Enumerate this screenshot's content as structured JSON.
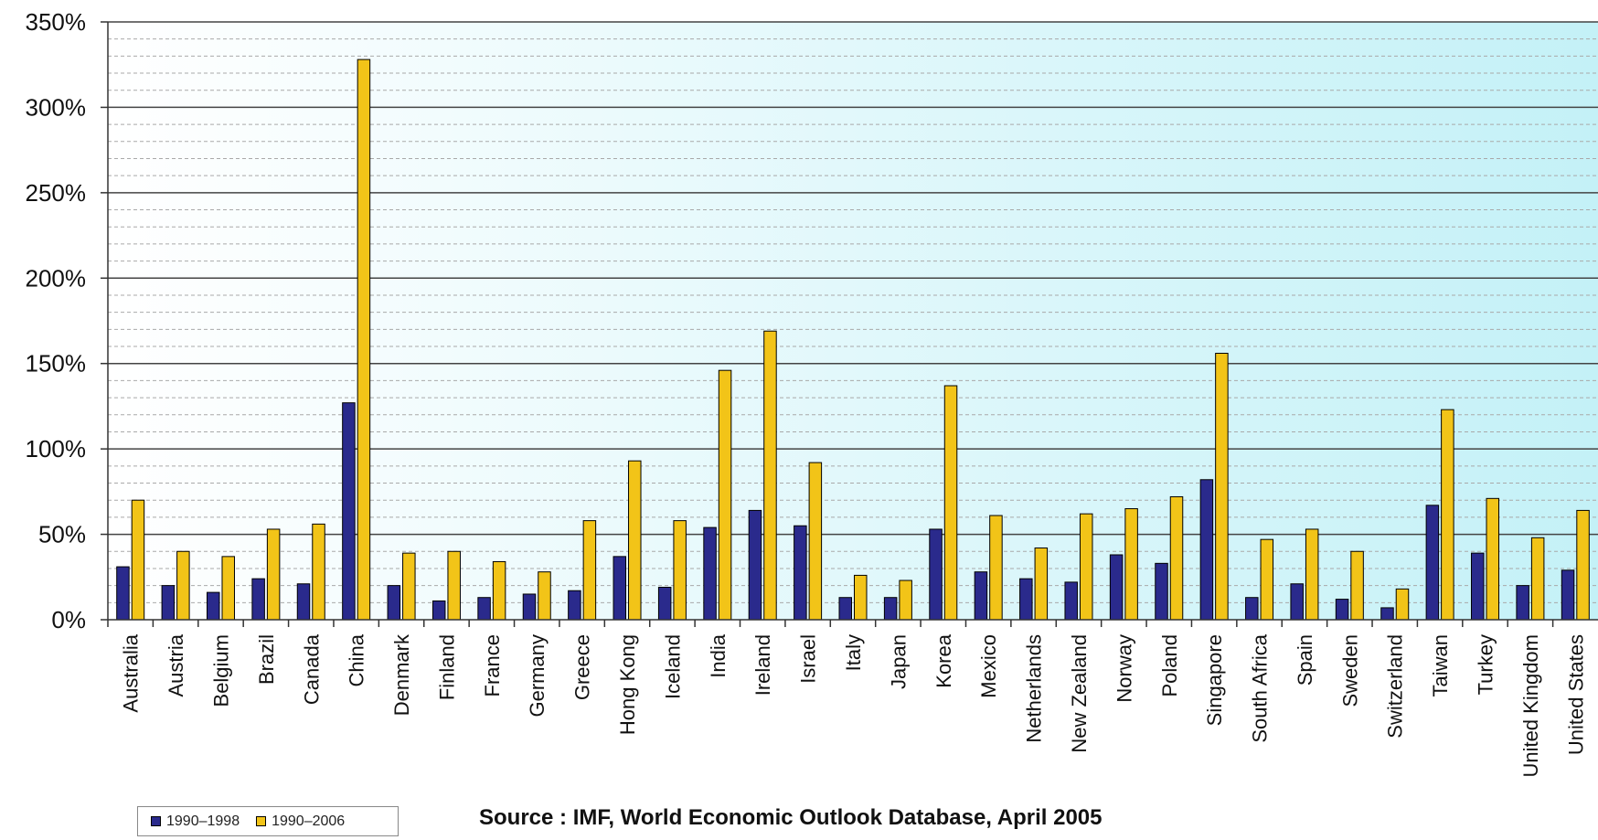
{
  "chart_data": {
    "type": "bar",
    "title": "",
    "xlabel": "",
    "ylabel": "",
    "ylim": [
      0,
      350
    ],
    "y_ticks": [
      "0%",
      "50%",
      "100%",
      "150%",
      "200%",
      "250%",
      "300%",
      "350%"
    ],
    "y_tick_values": [
      0,
      50,
      100,
      150,
      200,
      250,
      300,
      350
    ],
    "grid": "major solid, minor dashed",
    "legend_position": "bottom-left",
    "categories": [
      "Australia",
      "Austria",
      "Belgium",
      "Brazil",
      "Canada",
      "China",
      "Denmark",
      "Finland",
      "France",
      "Germany",
      "Greece",
      "Hong Kong",
      "Iceland",
      "India",
      "Ireland",
      "Israel",
      "Italy",
      "Japan",
      "Korea",
      "Mexico",
      "Netherlands",
      "New Zealand",
      "Norway",
      "Poland",
      "Singapore",
      "South Africa",
      "Spain",
      "Sweden",
      "Switzerland",
      "Taiwan",
      "Turkey",
      "United Kingdom",
      "United States"
    ],
    "series": [
      {
        "name": "1990–1998",
        "color": "#2a2a8c",
        "values": [
          31,
          20,
          16,
          24,
          21,
          127,
          20,
          11,
          13,
          15,
          17,
          37,
          19,
          54,
          64,
          55,
          13,
          13,
          53,
          28,
          24,
          22,
          38,
          33,
          82,
          13,
          21,
          12,
          7,
          67,
          39,
          20,
          29
        ]
      },
      {
        "name": "1990–2006",
        "color": "#f2c418",
        "values": [
          70,
          40,
          37,
          53,
          56,
          328,
          39,
          40,
          34,
          28,
          58,
          93,
          58,
          146,
          169,
          92,
          26,
          23,
          137,
          61,
          42,
          62,
          65,
          72,
          156,
          47,
          53,
          40,
          18,
          123,
          71,
          48,
          64
        ]
      }
    ]
  },
  "legend": {
    "items": [
      {
        "label": "1990–1998",
        "color": "#2a2a8c"
      },
      {
        "label": "1990–2006",
        "color": "#f2c418"
      }
    ]
  },
  "source_text": "Source : IMF, World Economic Outlook Database, April 2005"
}
